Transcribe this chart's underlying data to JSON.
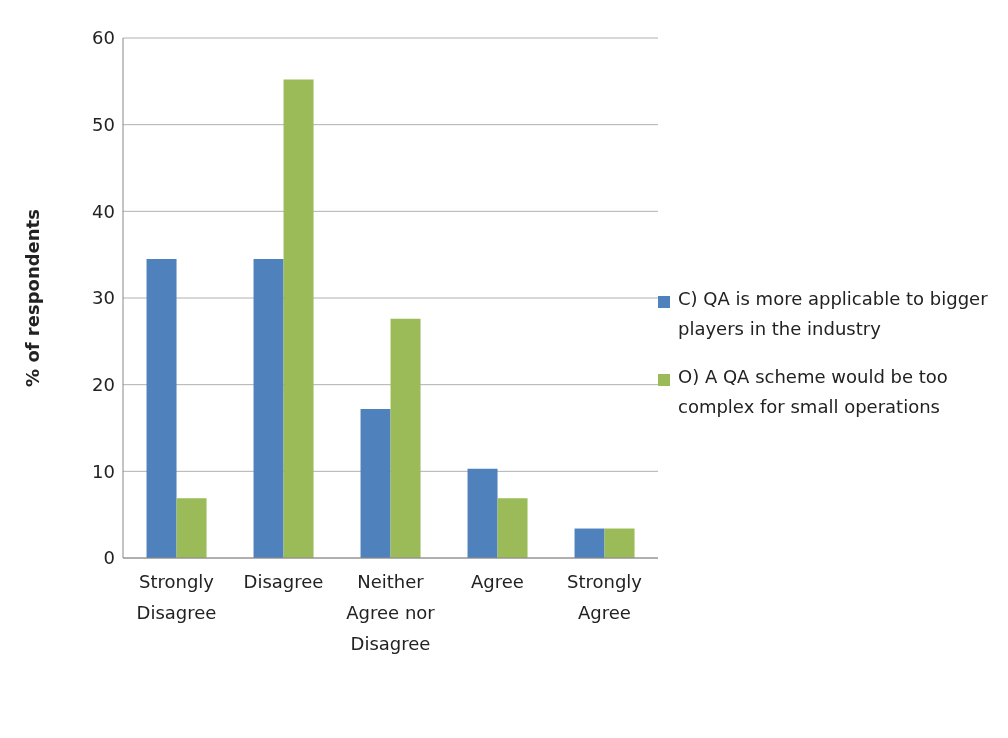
{
  "chart_data": {
    "type": "bar",
    "ylabel": "% of respondents",
    "categories": [
      "Strongly Disagree",
      "Disagree",
      "Neither Agree nor Disagree",
      "Agree",
      "Strongly Agree"
    ],
    "series": [
      {
        "name": "C) QA is more applicable to bigger players in the industry",
        "color": "#4f81bd",
        "values": [
          34.5,
          34.5,
          17.2,
          10.3,
          3.4
        ]
      },
      {
        "name": "O) A QA scheme would be too complex for small operations",
        "color": "#9bbb59",
        "values": [
          6.9,
          55.2,
          27.6,
          6.9,
          3.4
        ]
      }
    ],
    "ylim": [
      0,
      60
    ],
    "yticks": [
      0,
      10,
      20,
      30,
      40,
      50,
      60
    ],
    "grid": "y",
    "legend": "right"
  }
}
